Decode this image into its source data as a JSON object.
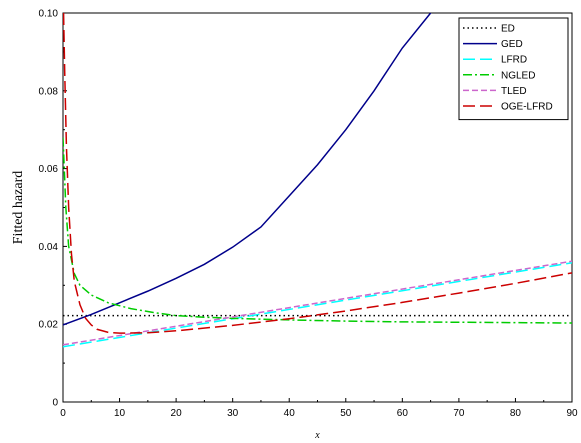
{
  "chart_data": {
    "type": "line",
    "title": "",
    "xlabel": "x",
    "ylabel": "Fitted hazard",
    "xlim": [
      0,
      90
    ],
    "ylim": [
      0,
      0.1
    ],
    "x_ticks": [
      0,
      10,
      20,
      30,
      40,
      50,
      60,
      70,
      80,
      90
    ],
    "y_ticks": [
      0,
      0.02,
      0.04,
      0.06,
      0.08,
      0.1
    ],
    "y_tick_labels": [
      "0",
      "0.02",
      "0.04",
      "0.06",
      "0.08",
      "0.10"
    ],
    "grid": false,
    "legend_position": "top-right",
    "series": [
      {
        "name": "ED",
        "color": "#000000",
        "dash": "dotted",
        "x": [
          0,
          90
        ],
        "y": [
          0.0222,
          0.0222
        ]
      },
      {
        "name": "GED",
        "color": "#00008B",
        "dash": "solid",
        "x": [
          0,
          5,
          10,
          15,
          20,
          25,
          30,
          35,
          40,
          45,
          50,
          55,
          60,
          65,
          66
        ],
        "y": [
          0.0198,
          0.0225,
          0.0255,
          0.0285,
          0.0318,
          0.0354,
          0.0398,
          0.045,
          0.053,
          0.061,
          0.07,
          0.08,
          0.091,
          0.1,
          0.102
        ]
      },
      {
        "name": "LFRD",
        "color": "#00FFFF",
        "dash": "longdash",
        "x": [
          0,
          90
        ],
        "y": [
          0.0142,
          0.0358
        ]
      },
      {
        "name": "NGLED",
        "color": "#00CC00",
        "dash": "dashdot",
        "x": [
          0,
          0.5,
          1,
          2,
          3,
          5,
          8,
          12,
          16,
          20,
          25,
          30,
          35,
          40,
          50,
          60,
          70,
          80,
          90
        ],
        "y": [
          0.068,
          0.05,
          0.04,
          0.033,
          0.03,
          0.0275,
          0.0255,
          0.024,
          0.023,
          0.0222,
          0.0218,
          0.0215,
          0.0213,
          0.0211,
          0.0208,
          0.0206,
          0.0205,
          0.0204,
          0.0203
        ]
      },
      {
        "name": "TLED",
        "color": "#CC66CC",
        "dash": "dashed",
        "x": [
          0,
          90
        ],
        "y": [
          0.0147,
          0.0362
        ]
      },
      {
        "name": "OGE-LFRD",
        "color": "#CC0000",
        "dash": "longdash",
        "x": [
          0.1,
          0.3,
          0.6,
          1,
          1.5,
          2,
          3,
          4,
          5,
          6,
          8,
          10,
          15,
          20,
          30,
          40,
          50,
          60,
          70,
          80,
          90
        ],
        "y": [
          0.1,
          0.085,
          0.066,
          0.05,
          0.038,
          0.031,
          0.025,
          0.0215,
          0.0198,
          0.0187,
          0.0179,
          0.0177,
          0.0178,
          0.0183,
          0.0197,
          0.0214,
          0.0234,
          0.0256,
          0.028,
          0.0305,
          0.0332
        ]
      }
    ]
  }
}
